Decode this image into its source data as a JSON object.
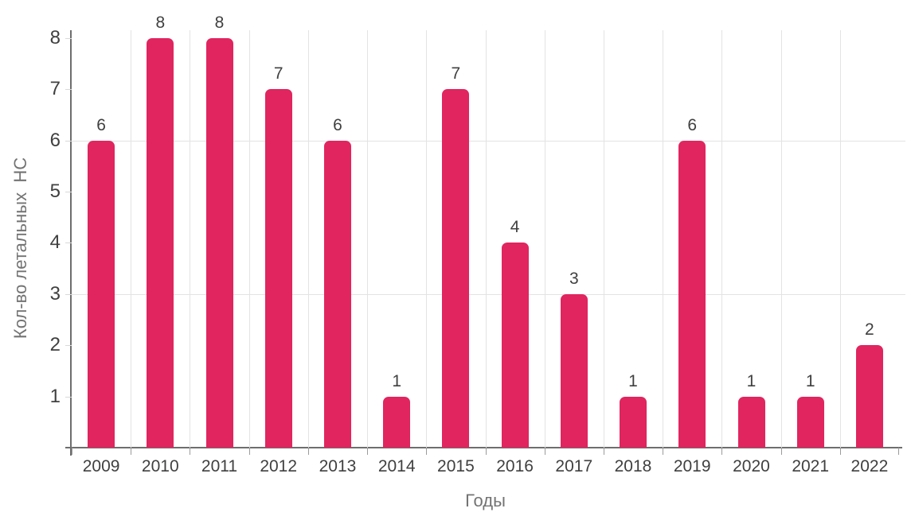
{
  "chart_data": {
    "type": "bar",
    "title": "",
    "categories": [
      "2009",
      "2010",
      "2011",
      "2012",
      "2013",
      "2014",
      "2015",
      "2016",
      "2017",
      "2018",
      "2019",
      "2020",
      "2021",
      "2022"
    ],
    "values": [
      6,
      8,
      8,
      7,
      6,
      1,
      7,
      4,
      3,
      1,
      6,
      1,
      1,
      2
    ],
    "data_labels": [
      "6",
      "8",
      "8",
      "7",
      "6",
      "1",
      "7",
      "4",
      "3",
      "1",
      "6",
      "1",
      "1",
      "2"
    ],
    "xlabel": "Годы",
    "ylabel": "Кол-во летальных  НС",
    "ylim": [
      0,
      8.15
    ],
    "yticks": [
      1,
      2,
      3,
      4,
      5,
      6,
      7,
      8
    ],
    "horizontal_gridlines_at": [
      3,
      6
    ],
    "vertical_gridlines": "between each category",
    "legend_position": "none",
    "colors": {
      "bar": "#e0255f",
      "gridline": "#e3e3e3",
      "axis_line": "#6e6e6e",
      "tick_label": "#404040",
      "data_label": "#404040",
      "axis_title": "#737373",
      "background": "#ffffff"
    }
  }
}
